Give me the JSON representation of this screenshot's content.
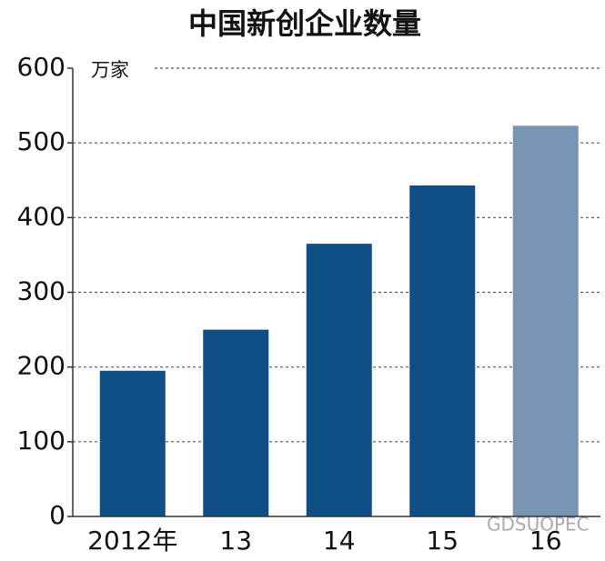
{
  "chart_data": {
    "type": "bar",
    "title": "中国新创企业数量",
    "y_unit": "万家",
    "categories": [
      "2012年",
      "13",
      "14",
      "15",
      "16"
    ],
    "values": [
      195,
      250,
      365,
      443,
      523
    ],
    "colors": [
      "#0f4f86",
      "#0f4f86",
      "#0f4f86",
      "#0f4f86",
      "#7a95b3"
    ],
    "ylim": [
      0,
      600
    ],
    "yticks": [
      0,
      100,
      200,
      300,
      400,
      500,
      600
    ],
    "grid": true,
    "watermark": "GDSUOPEC"
  }
}
